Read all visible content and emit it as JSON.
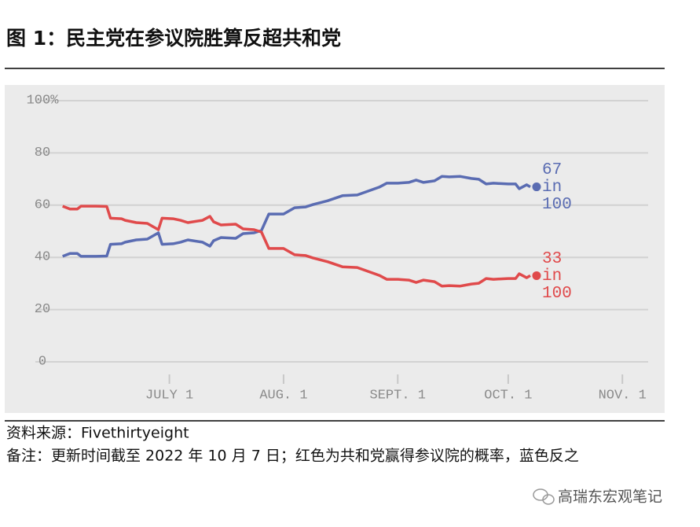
{
  "chart_data": {
    "type": "line",
    "title": "图 1：民主党在参议院胜算反超共和党",
    "source": "资料来源：Fivethirtyeight",
    "note": "备注：更新时间截至 2022 年 10 月 7 日；红色为共和党赢得参议院的概率，蓝色反之",
    "watermark": "高瑞东宏观笔记",
    "x": [
      "2022-06-02",
      "2022-06-04",
      "2022-06-06",
      "2022-06-07",
      "2022-06-11",
      "2022-06-14",
      "2022-06-15",
      "2022-06-18",
      "2022-06-19",
      "2022-06-22",
      "2022-06-25",
      "2022-06-28",
      "2022-06-29",
      "2022-07-02",
      "2022-07-04",
      "2022-07-06",
      "2022-07-10",
      "2022-07-12",
      "2022-07-13",
      "2022-07-15",
      "2022-07-19",
      "2022-07-21",
      "2022-07-24",
      "2022-07-26",
      "2022-07-28",
      "2022-08-01",
      "2022-08-04",
      "2022-08-07",
      "2022-08-09",
      "2022-08-13",
      "2022-08-17",
      "2022-08-21",
      "2022-08-24",
      "2022-08-27",
      "2022-08-29",
      "2022-09-01",
      "2022-09-04",
      "2022-09-06",
      "2022-09-08",
      "2022-09-11",
      "2022-09-13",
      "2022-09-15",
      "2022-09-18",
      "2022-09-21",
      "2022-09-23",
      "2022-09-25",
      "2022-09-27",
      "2022-10-01",
      "2022-10-03",
      "2022-10-04",
      "2022-10-06",
      "2022-10-07"
    ],
    "series": [
      {
        "color": "#5a6cb2",
        "label_lines": [
          "67",
          "in",
          "100"
        ],
        "values": [
          40.4,
          41.5,
          41.5,
          40.4,
          40.4,
          40.5,
          45,
          45.2,
          45.8,
          46.7,
          47,
          49.4,
          45,
          45.2,
          45.8,
          46.7,
          45.8,
          44.3,
          46.4,
          47.6,
          47.3,
          49.1,
          49.4,
          50.3,
          56.6,
          56.6,
          59,
          59.3,
          60.2,
          61.7,
          63.6,
          63.9,
          65.4,
          66.9,
          68.4,
          68.4,
          68.7,
          69.6,
          68.7,
          69.3,
          71,
          70.8,
          71,
          70.2,
          69.9,
          68.1,
          68.4,
          68.1,
          68.1,
          66.3,
          67.8,
          67
        ]
      },
      {
        "color": "#e04a4b",
        "label_lines": [
          "33",
          "in",
          "100"
        ],
        "values": [
          59.6,
          58.5,
          58.5,
          59.6,
          59.6,
          59.5,
          55,
          54.8,
          54.2,
          53.3,
          53,
          50.6,
          55,
          54.8,
          54.2,
          53.3,
          54.2,
          55.7,
          53.6,
          52.4,
          52.7,
          50.9,
          50.6,
          49.7,
          43.4,
          43.4,
          41,
          40.7,
          39.8,
          38.3,
          36.4,
          36.1,
          34.6,
          33.1,
          31.6,
          31.6,
          31.3,
          30.4,
          31.3,
          30.7,
          29,
          29.2,
          29,
          29.8,
          30.1,
          31.9,
          31.6,
          31.9,
          31.9,
          33.7,
          32.2,
          33
        ]
      }
    ],
    "xlim": [
      "2022-06-01",
      "2022-11-08"
    ],
    "xticks": [
      {
        "value": "2022-07-01",
        "label": "JULY 1"
      },
      {
        "value": "2022-08-01",
        "label": "AUG. 1"
      },
      {
        "value": "2022-09-01",
        "label": "SEPT. 1"
      },
      {
        "value": "2022-10-01",
        "label": "OCT. 1"
      },
      {
        "value": "2022-11-01",
        "label": "NOV. 1"
      }
    ],
    "ylim": [
      0,
      100
    ],
    "yticks": [
      0,
      20,
      40,
      60,
      80,
      {
        "value": 100,
        "label": "100%"
      }
    ],
    "grid": true
  }
}
